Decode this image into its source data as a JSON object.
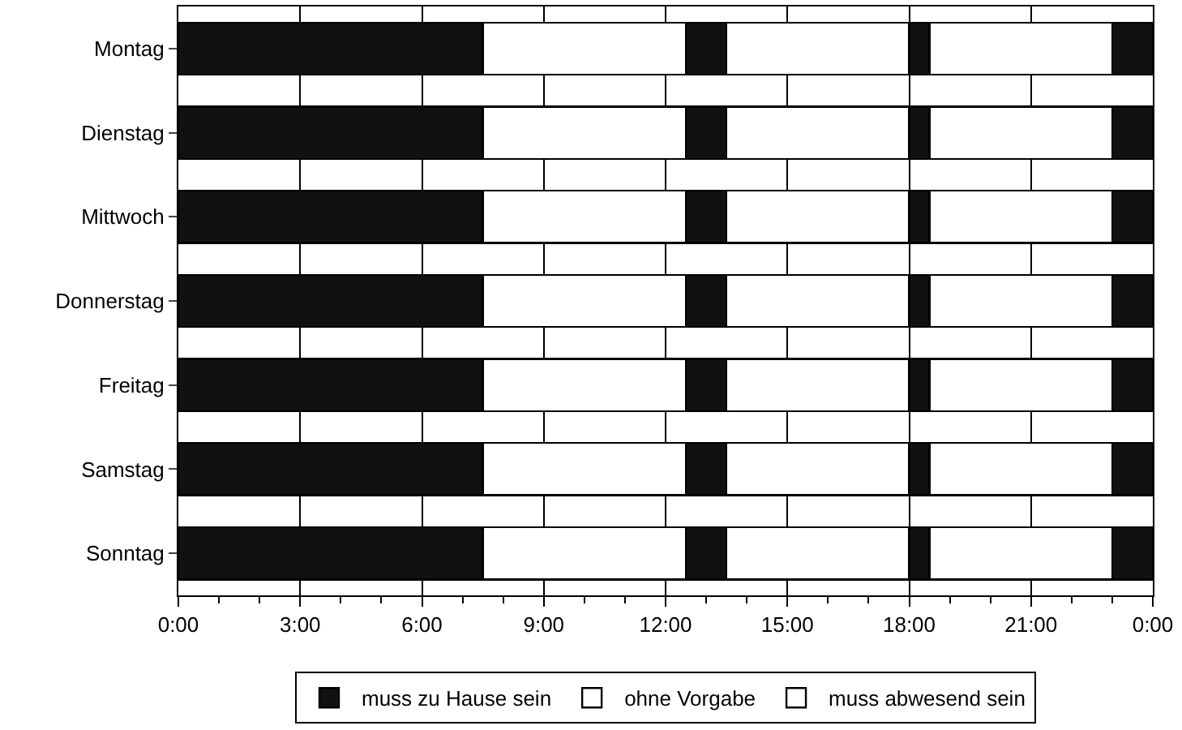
{
  "chart_data": {
    "type": "bar",
    "orientation": "horizontal",
    "stacked": true,
    "categories": [
      "Montag",
      "Dienstag",
      "Mittwoch",
      "Donnerstag",
      "Freitag",
      "Samstag",
      "Sonntag"
    ],
    "series": [
      {
        "name": "muss zu Hause sein",
        "color": "#111111",
        "values": [
          7.5,
          7.5,
          7.5,
          7.5,
          7.5,
          7.5,
          7.5
        ]
      },
      {
        "name": "ohne Vorgabe",
        "color": "#ffffff",
        "values": [
          5,
          5,
          5,
          5,
          5,
          5,
          5
        ]
      },
      {
        "color": "#111111",
        "values": [
          1,
          1,
          1,
          1,
          1,
          1,
          1
        ]
      },
      {
        "name": "muss abwesend sein",
        "color": "#ffffff",
        "values": [
          4.5,
          4.5,
          4.5,
          4.5,
          4.5,
          4.5,
          4.5
        ]
      },
      {
        "color": "#111111",
        "values": [
          0.5,
          0.5,
          0.5,
          0.5,
          0.5,
          0.5,
          0.5
        ]
      },
      {
        "color": "#ffffff",
        "values": [
          4.5,
          4.5,
          4.5,
          4.5,
          4.5,
          4.5,
          4.5
        ]
      },
      {
        "color": "#111111",
        "values": [
          1,
          1,
          1,
          1,
          1,
          1,
          1
        ]
      }
    ],
    "xlim": [
      0,
      24
    ],
    "xticks": [
      {
        "value": 0,
        "label": "0:00"
      },
      {
        "value": 3,
        "label": "3:00"
      },
      {
        "value": 6,
        "label": "6:00"
      },
      {
        "value": 9,
        "label": "9:00"
      },
      {
        "value": 12,
        "label": "12:00"
      },
      {
        "value": 15,
        "label": "15:00"
      },
      {
        "value": 18,
        "label": "18:00"
      },
      {
        "value": 21,
        "label": "21:00"
      },
      {
        "value": 24,
        "label": "0:00"
      }
    ],
    "grid": "x",
    "legend": "bottom"
  }
}
